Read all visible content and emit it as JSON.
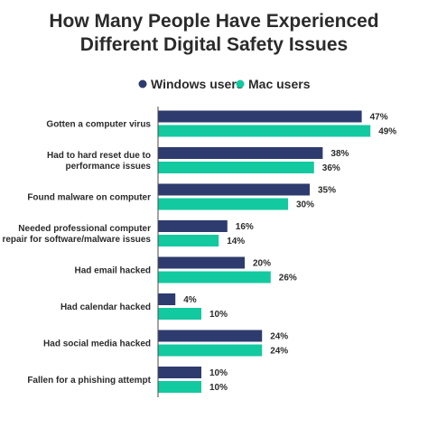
{
  "chart_data": {
    "type": "bar",
    "orientation": "horizontal",
    "title": "How Many People Have Experienced Different Digital Safety Issues",
    "title_lines": [
      "How Many People Have Experienced",
      "Different Digital Safety Issues"
    ],
    "legend_position": "top",
    "grid": false,
    "xlim": [
      0,
      50
    ],
    "value_suffix": "%",
    "categories": [
      "Gotten a computer virus",
      "Had to hard reset due to performance issues",
      "Found malware on computer",
      "Needed professional computer repair for software/malware issues",
      "Had email hacked",
      "Had calendar hacked",
      "Had social media hacked",
      "Fallen for a phishing attempt"
    ],
    "category_lines": [
      [
        "Gotten a computer virus"
      ],
      [
        "Had to hard reset due to",
        "performance issues"
      ],
      [
        "Found malware on computer"
      ],
      [
        "Needed professional computer",
        "repair for software/malware issues"
      ],
      [
        "Had email hacked"
      ],
      [
        "Had calendar hacked"
      ],
      [
        "Had social media hacked"
      ],
      [
        "Fallen for a phishing attempt"
      ]
    ],
    "series": [
      {
        "name": "Windows users",
        "color": "#2d3b6e",
        "values": [
          47,
          38,
          35,
          16,
          20,
          4,
          24,
          10
        ]
      },
      {
        "name": "Mac users",
        "color": "#13c9a0",
        "values": [
          49,
          36,
          30,
          14,
          26,
          10,
          24,
          10
        ]
      }
    ]
  }
}
